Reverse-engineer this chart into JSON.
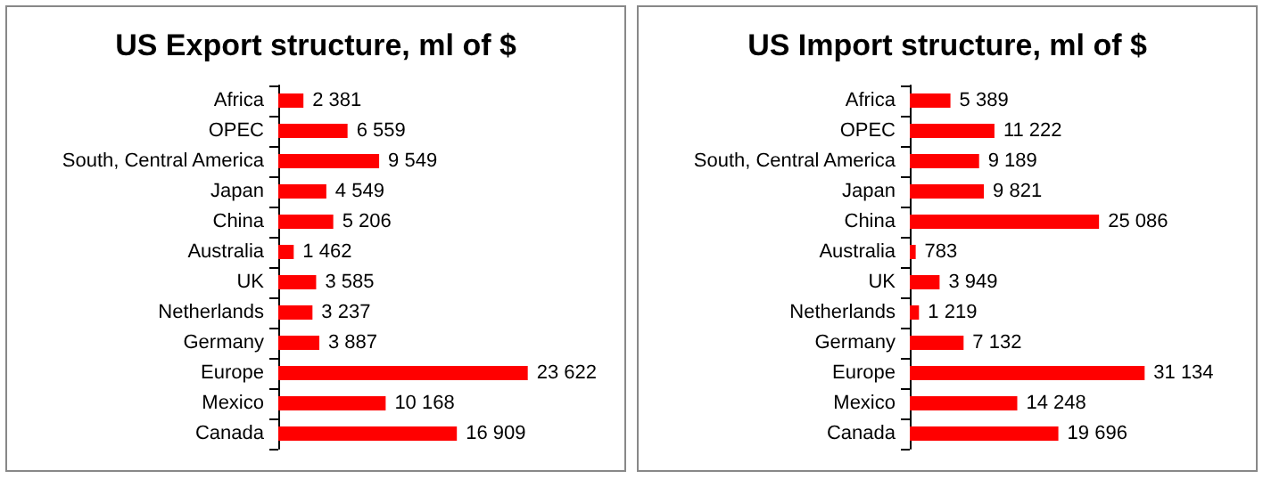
{
  "chart_data": [
    {
      "type": "bar",
      "orientation": "horizontal",
      "title": "US Export structure, ml of $",
      "categories": [
        "Africa",
        "OPEC",
        "South, Central America",
        "Japan",
        "China",
        "Australia",
        "UK",
        "Netherlands",
        "Germany",
        "Europe",
        "Mexico",
        "Canada"
      ],
      "values": [
        2381,
        6559,
        9549,
        4549,
        5206,
        1462,
        3585,
        3237,
        3887,
        23622,
        10168,
        16909
      ],
      "value_labels": [
        "2 381",
        "6 559",
        "9 549",
        "4 549",
        "5 206",
        "1 462",
        "3 585",
        "3 237",
        "3 887",
        "23 622",
        "10 168",
        "16 909"
      ],
      "color": "#ff0000",
      "tick_labels": "y",
      "grid": false
    },
    {
      "type": "bar",
      "orientation": "horizontal",
      "title": "US Import structure, ml of $",
      "categories": [
        "Africa",
        "OPEC",
        "South, Central America",
        "Japan",
        "China",
        "Australia",
        "UK",
        "Netherlands",
        "Germany",
        "Europe",
        "Mexico",
        "Canada"
      ],
      "values": [
        5389,
        11222,
        9189,
        9821,
        25086,
        783,
        3949,
        1219,
        7132,
        31134,
        14248,
        19696
      ],
      "value_labels": [
        "5 389",
        "11 222",
        "9 189",
        "9 821",
        "25 086",
        "783",
        "3 949",
        "1 219",
        "7 132",
        "31 134",
        "14 248",
        "19 696"
      ],
      "color": "#ff0000",
      "tick_labels": "y",
      "grid": false
    }
  ]
}
